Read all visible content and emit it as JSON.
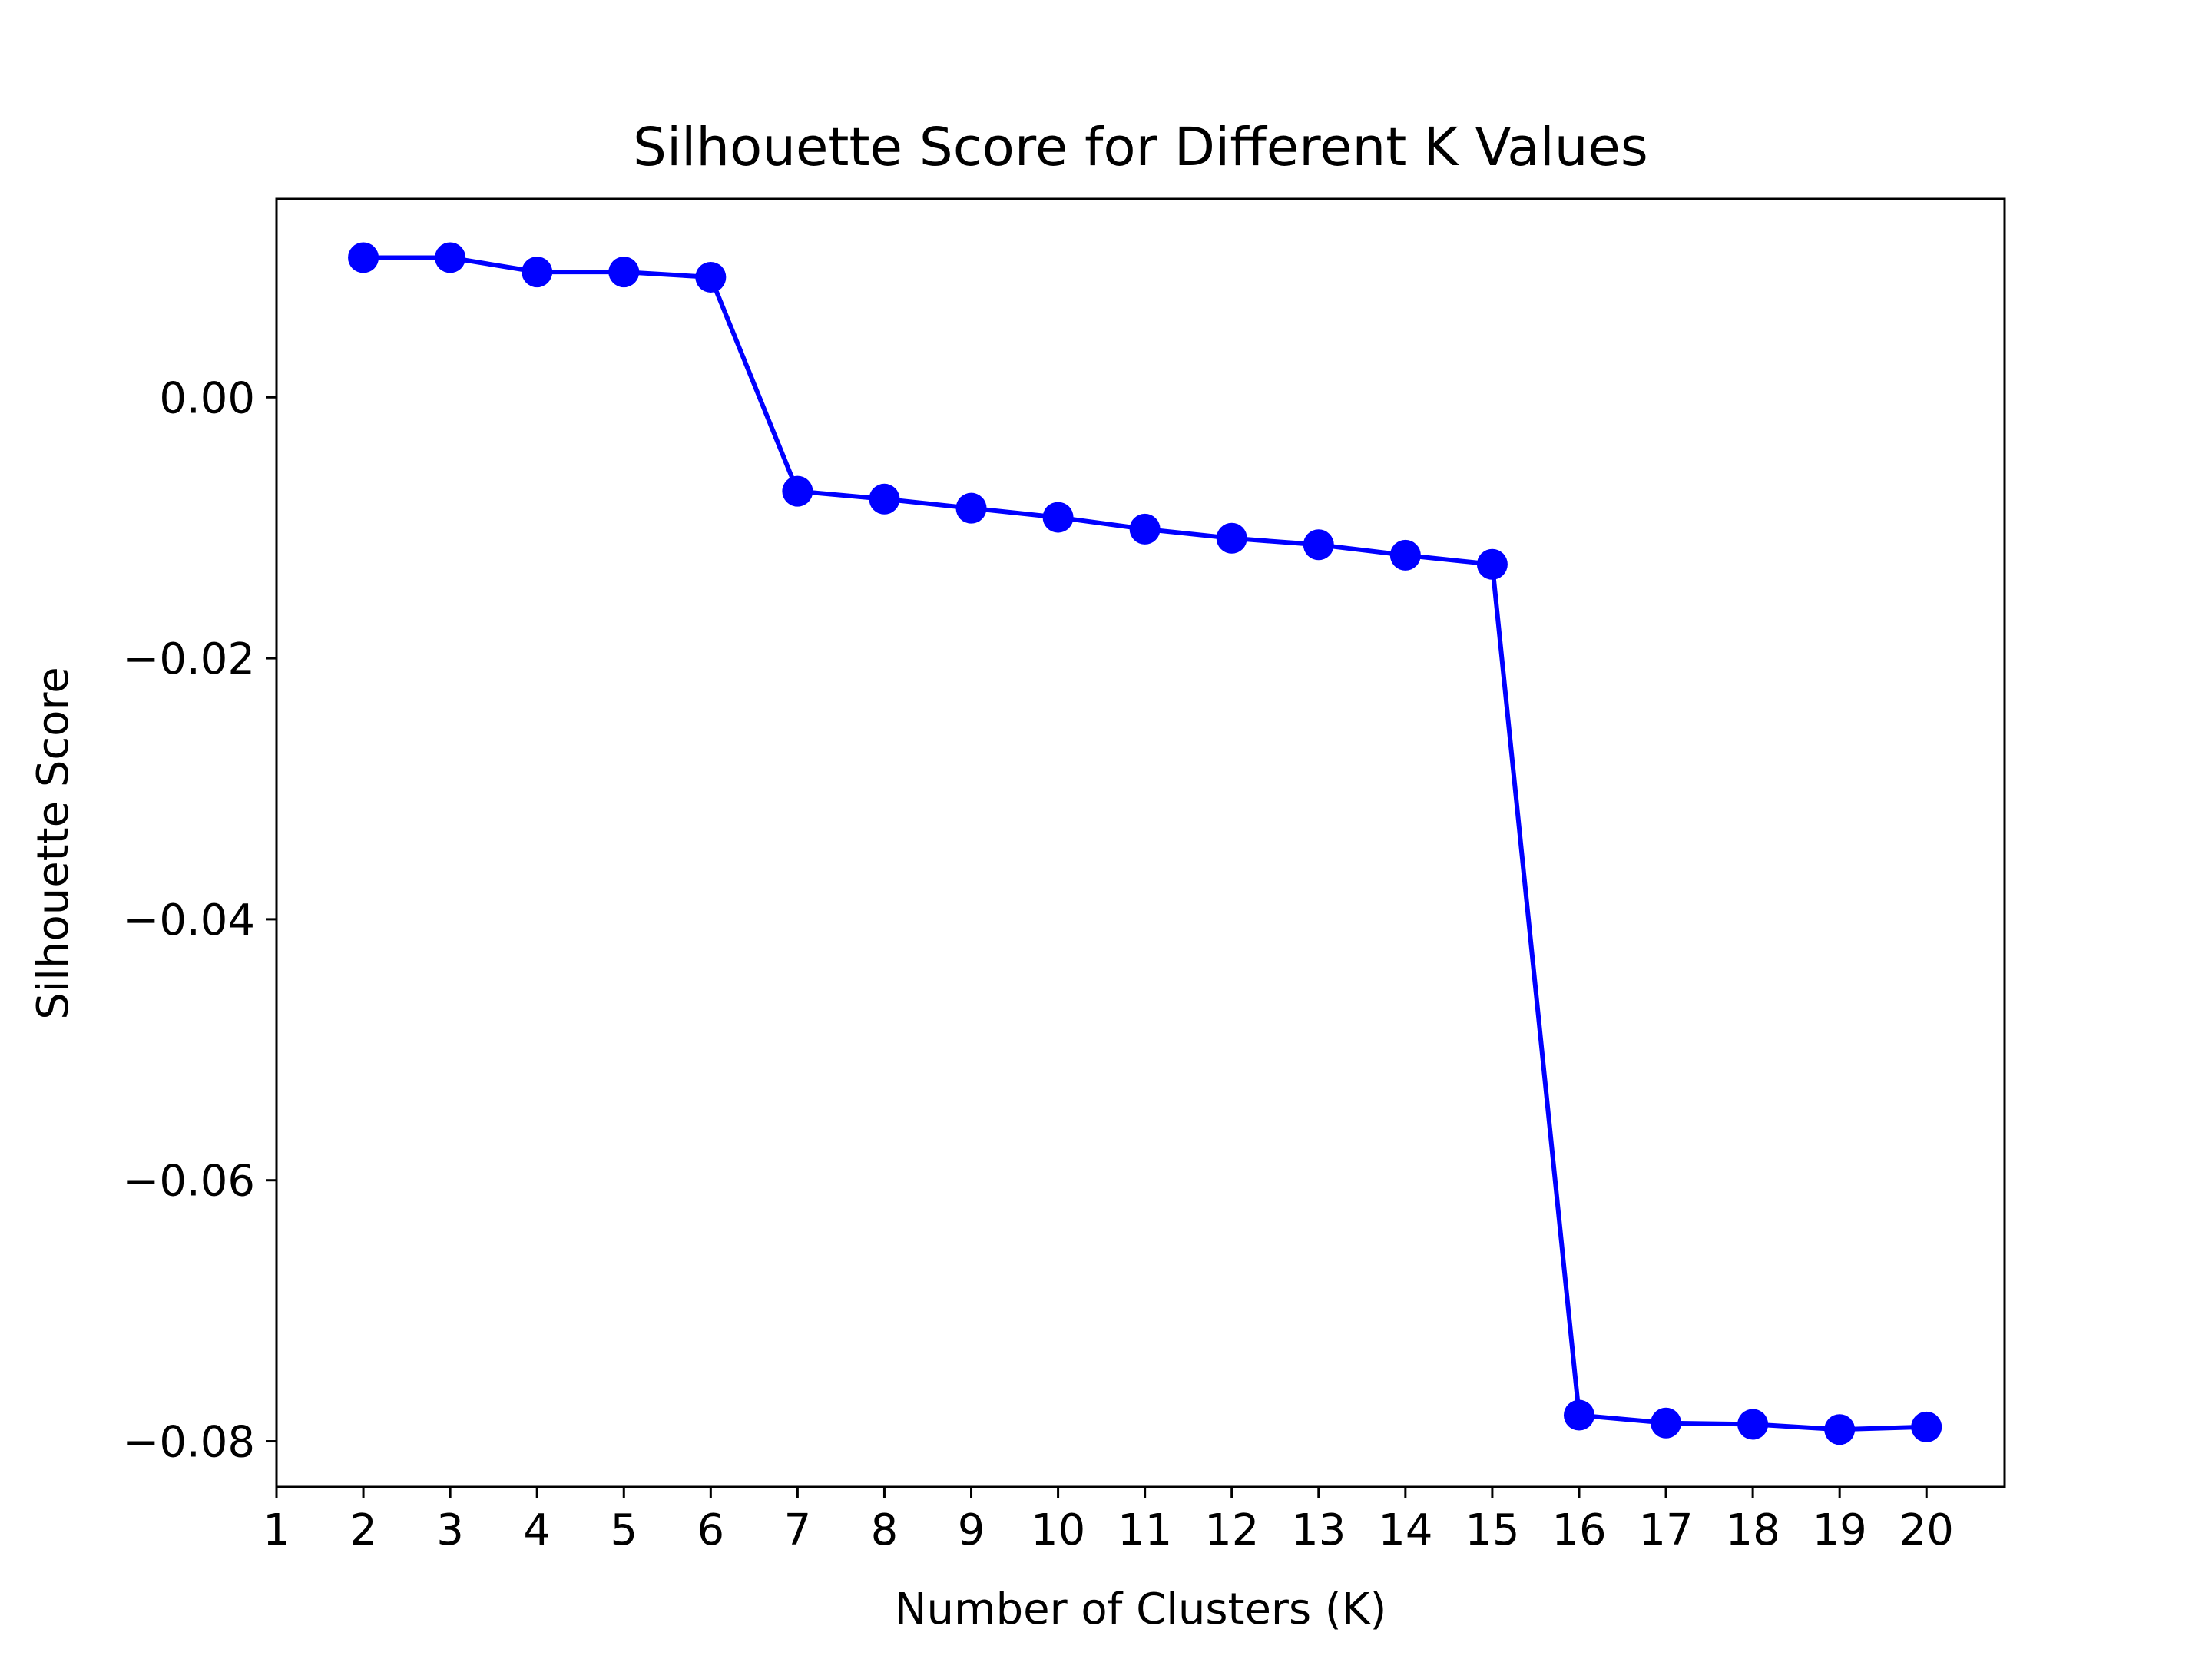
{
  "chart_data": {
    "type": "line",
    "title": "Silhouette Score for Different K Values",
    "xlabel": "Number of Clusters (K)",
    "ylabel": "Silhouette Score",
    "x_ticks": [
      "1",
      "2",
      "3",
      "4",
      "5",
      "6",
      "7",
      "8",
      "9",
      "10",
      "11",
      "12",
      "13",
      "14",
      "15",
      "16",
      "17",
      "18",
      "19",
      "20"
    ],
    "y_ticks": [
      "0.00",
      "−0.02",
      "−0.04",
      "−0.06",
      "−0.08"
    ],
    "y_tick_values": [
      0.0,
      -0.02,
      -0.04,
      -0.06,
      -0.08
    ],
    "xlim": [
      1,
      20.9
    ],
    "ylim": [
      -0.0835,
      0.0152
    ],
    "grid": false,
    "series": [
      {
        "x": [
          2,
          3,
          4,
          5,
          6,
          7,
          8,
          9,
          10,
          11,
          12,
          13,
          14,
          15,
          16,
          17,
          18,
          19,
          20
        ],
        "values": [
          0.0107,
          0.0107,
          0.0096,
          0.0096,
          0.0092,
          -0.0072,
          -0.0078,
          -0.0085,
          -0.0092,
          -0.0101,
          -0.0108,
          -0.0113,
          -0.0121,
          -0.0128,
          -0.078,
          -0.0786,
          -0.0787,
          -0.0791,
          -0.0789
        ],
        "color": "#0000ff",
        "marker": "circle"
      }
    ]
  }
}
